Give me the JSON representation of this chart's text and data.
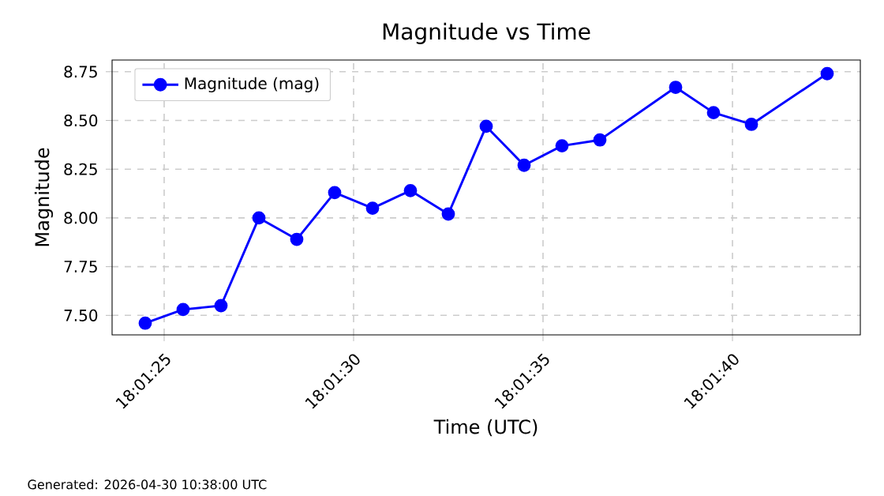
{
  "chart_data": {
    "type": "line",
    "title": "Magnitude vs Time",
    "xlabel": "Time (UTC)",
    "ylabel": "Magnitude",
    "annotations": [
      "Generated: 2026-04-30 10:38:00 UTC"
    ],
    "x": [
      18.0234722,
      18.02375,
      18.0240278,
      18.0243056,
      18.0245833,
      18.0248611,
      18.0251389,
      18.0254167,
      18.0256944,
      18.0259722,
      18.02625,
      18.0265278,
      18.0268056,
      18.0273611,
      18.0276389,
      18.0279167,
      18.0284722
    ],
    "series": [
      {
        "name": "Magnitude (mag)",
        "color": "#0000ff",
        "values": [
          7.46,
          7.53,
          7.55,
          8.0,
          7.89,
          8.13,
          8.05,
          8.14,
          8.02,
          8.47,
          8.27,
          8.37,
          8.4,
          8.67,
          8.54,
          8.48,
          8.74
        ]
      }
    ],
    "xlim": [
      18.0232292,
      18.0287153
    ],
    "ylim": [
      7.4,
      8.81
    ],
    "xticks": [
      {
        "value": 18.0236111,
        "label": "18:01:25"
      },
      {
        "value": 18.025,
        "label": "18:01:30"
      },
      {
        "value": 18.0263889,
        "label": "18:01:35"
      },
      {
        "value": 18.0277778,
        "label": "18:01:40"
      }
    ],
    "yticks": [
      {
        "value": 7.5,
        "label": "7.50"
      },
      {
        "value": 7.75,
        "label": "7.75"
      },
      {
        "value": 8.0,
        "label": "8.00"
      },
      {
        "value": 8.25,
        "label": "8.25"
      },
      {
        "value": 8.5,
        "label": "8.50"
      },
      {
        "value": 8.75,
        "label": "8.75"
      }
    ],
    "grid": true,
    "legend": "top left",
    "marker": "circle",
    "line_style": "solid"
  }
}
